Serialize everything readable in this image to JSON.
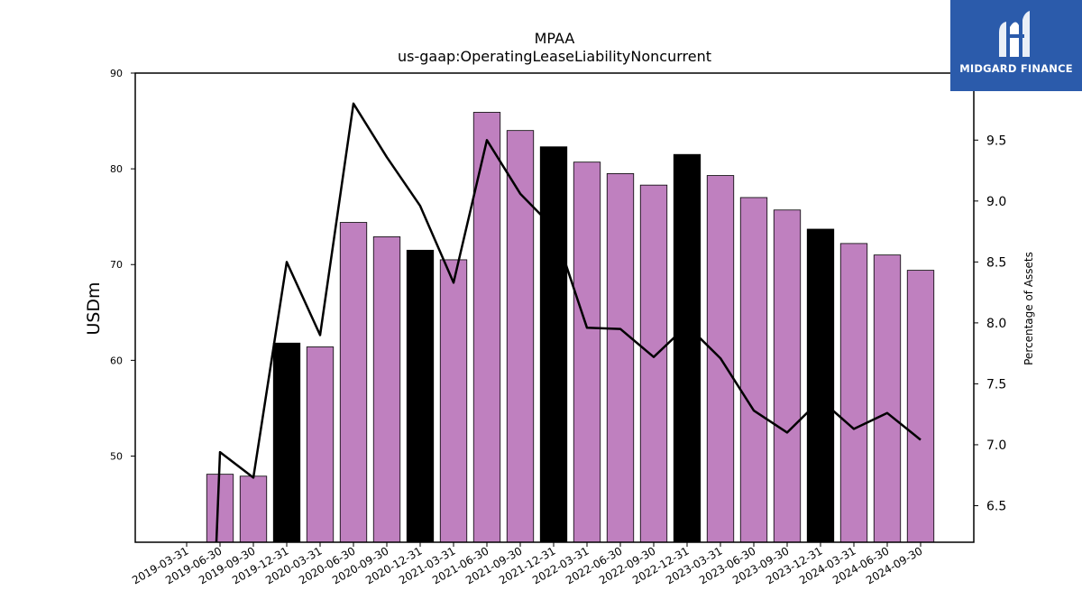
{
  "logo": {
    "text": "MIDGARD FINANCE",
    "icon": "midgard-m-icon",
    "background": "#2b5bab"
  },
  "chart_data": {
    "type": "bar",
    "title": "MPAA",
    "subtitle": "us-gaap:OperatingLeaseLiabilityNoncurrent",
    "ylabel": "USDm",
    "y2label": "Percentage of Assets",
    "ylim": [
      41,
      90
    ],
    "y2lim": [
      6.2,
      10.05
    ],
    "yticks": [
      50,
      60,
      70,
      80,
      90
    ],
    "y2ticks": [
      6.5,
      7.0,
      7.5,
      8.0,
      8.5,
      9.0,
      9.5
    ],
    "categories": [
      "2019-03-31",
      "2019-06-30",
      "2019-09-30",
      "2019-12-31",
      "2020-03-31",
      "2020-06-30",
      "2020-09-30",
      "2020-12-31",
      "2021-03-31",
      "2021-06-30",
      "2021-09-30",
      "2021-12-31",
      "2022-03-31",
      "2022-06-30",
      "2022-09-30",
      "2022-12-31",
      "2023-03-31",
      "2023-06-30",
      "2023-09-30",
      "2023-12-31",
      "2024-03-31",
      "2024-06-30",
      "2024-09-30"
    ],
    "series": [
      {
        "type": "bar",
        "values": [
          null,
          48.1,
          47.9,
          61.8,
          61.4,
          74.4,
          72.9,
          71.5,
          70.5,
          85.9,
          84.0,
          82.3,
          80.7,
          79.5,
          78.3,
          81.5,
          79.3,
          77.0,
          75.7,
          73.7,
          72.2,
          71.0,
          69.4
        ],
        "colors": {
          "default": "#bf80bf",
          "year_end": "#000000"
        }
      },
      {
        "type": "line",
        "axis": "right",
        "values": [
          null,
          6.94,
          6.73,
          8.5,
          7.9,
          9.8,
          9.36,
          8.96,
          8.33,
          9.5,
          9.06,
          8.78,
          7.96,
          7.95,
          7.72,
          7.98,
          7.71,
          7.28,
          7.1,
          7.37,
          7.13,
          7.26,
          7.04
        ],
        "color": "#000000"
      }
    ],
    "grid": false,
    "legend": "none"
  }
}
